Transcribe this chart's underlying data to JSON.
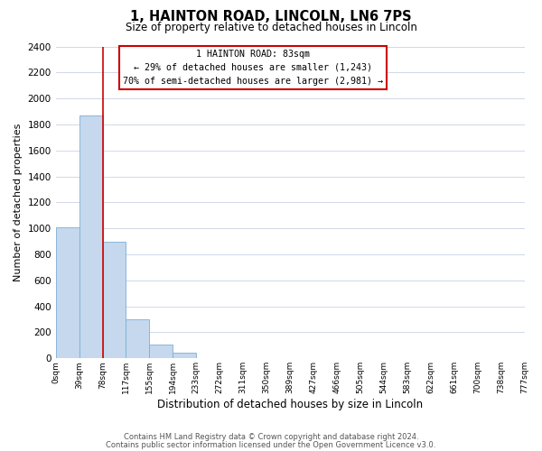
{
  "title": "1, HAINTON ROAD, LINCOLN, LN6 7PS",
  "subtitle": "Size of property relative to detached houses in Lincoln",
  "xlabel": "Distribution of detached houses by size in Lincoln",
  "ylabel": "Number of detached properties",
  "bin_labels": [
    "0sqm",
    "39sqm",
    "78sqm",
    "117sqm",
    "155sqm",
    "194sqm",
    "233sqm",
    "272sqm",
    "311sqm",
    "350sqm",
    "389sqm",
    "427sqm",
    "466sqm",
    "505sqm",
    "544sqm",
    "583sqm",
    "622sqm",
    "661sqm",
    "700sqm",
    "738sqm",
    "777sqm"
  ],
  "bar_heights": [
    1010,
    1870,
    900,
    300,
    105,
    45,
    0,
    0,
    0,
    0,
    0,
    0,
    0,
    0,
    0,
    0,
    0,
    0,
    0,
    0
  ],
  "bar_color": "#c5d8ee",
  "bar_edge_color": "#7bafd4",
  "ylim": [
    0,
    2400
  ],
  "yticks": [
    0,
    200,
    400,
    600,
    800,
    1000,
    1200,
    1400,
    1600,
    1800,
    2000,
    2200,
    2400
  ],
  "vline_x": 2,
  "vline_color": "#cc0000",
  "annotation_line1": "1 HAINTON ROAD: 83sqm",
  "annotation_line2": "← 29% of detached houses are smaller (1,243)",
  "annotation_line3": "70% of semi-detached houses are larger (2,981) →",
  "footer_line1": "Contains HM Land Registry data © Crown copyright and database right 2024.",
  "footer_line2": "Contains public sector information licensed under the Open Government Licence v3.0.",
  "background_color": "#ffffff",
  "grid_color": "#d0d8e8"
}
